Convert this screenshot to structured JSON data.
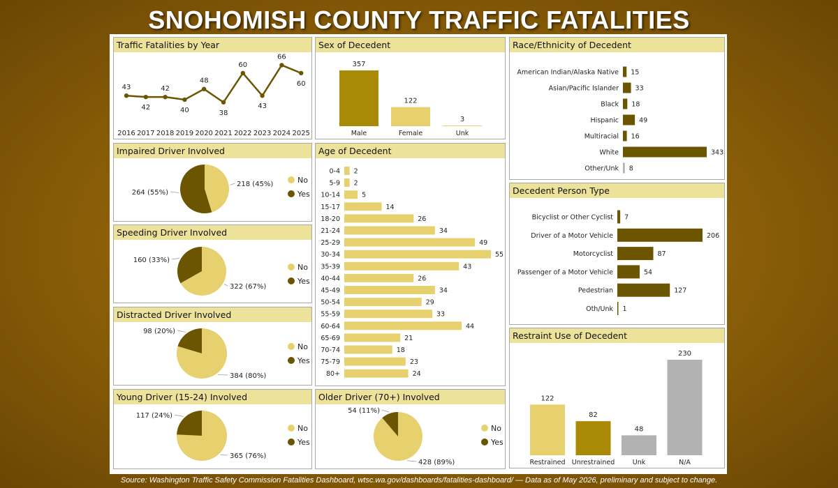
{
  "title": "SNOHOMISH COUNTY TRAFFIC FATALITIES",
  "source": "Source: Washington Traffic Safety Commission Fatalities Dashboard, wtsc.wa.gov/dashboards/fatalities-dashboard/ — Data as of May 2026, preliminary and subject to change.",
  "colors": {
    "light": "#e6d16e",
    "mid": "#a88a06",
    "dark": "#6b5500",
    "gray": "#b2b2b2",
    "header": "#ede29a"
  },
  "chart_data": [
    {
      "id": "by-year",
      "type": "line",
      "title": "Traffic Fatalities by Year",
      "x": [
        "2016",
        "2017",
        "2018",
        "2019",
        "2020",
        "2021",
        "2022",
        "2023",
        "2024",
        "2025"
      ],
      "values": [
        43,
        42,
        42,
        40,
        48,
        38,
        60,
        43,
        66,
        60
      ]
    },
    {
      "id": "sex",
      "type": "bar",
      "title": "Sex of Decedent",
      "categories": [
        "Male",
        "Female",
        "Unk"
      ],
      "values": [
        357,
        122,
        3
      ]
    },
    {
      "id": "race",
      "type": "bar",
      "orientation": "horizontal",
      "title": "Race/Ethnicity of Decedent",
      "categories": [
        "American Indian/Alaska Native",
        "Asian/Pacific Islander",
        "Black",
        "Hispanic",
        "Multiracial",
        "White",
        "Other/Unk"
      ],
      "values": [
        15,
        33,
        18,
        49,
        16,
        343,
        8
      ]
    },
    {
      "id": "impaired",
      "type": "pie",
      "title": "Impaired Driver Involved",
      "slices": [
        {
          "label": "No",
          "value": 218,
          "text": "218 (45%)"
        },
        {
          "label": "Yes",
          "value": 264,
          "text": "264 (55%)"
        }
      ]
    },
    {
      "id": "age",
      "type": "bar",
      "orientation": "horizontal",
      "title": "Age of Decedent",
      "categories": [
        "0-4",
        "5-9",
        "10-14",
        "15-17",
        "18-20",
        "21-24",
        "25-29",
        "30-34",
        "35-39",
        "40-44",
        "45-49",
        "50-54",
        "55-59",
        "60-64",
        "65-69",
        "70-74",
        "75-79",
        "80+"
      ],
      "values": [
        2,
        2,
        5,
        14,
        26,
        34,
        49,
        55,
        43,
        26,
        34,
        29,
        33,
        44,
        21,
        18,
        23,
        24
      ]
    },
    {
      "id": "person-type",
      "type": "bar",
      "orientation": "horizontal",
      "title": "Decedent Person Type",
      "categories": [
        "Bicyclist or Other Cyclist",
        "Driver of a Motor Vehicle",
        "Motorcyclist",
        "Passenger of a Motor Vehicle",
        "Pedestrian",
        "Oth/Unk"
      ],
      "values": [
        7,
        206,
        87,
        54,
        127,
        1
      ]
    },
    {
      "id": "speeding",
      "type": "pie",
      "title": "Speeding Driver Involved",
      "slices": [
        {
          "label": "No",
          "value": 322,
          "text": "322 (67%)"
        },
        {
          "label": "Yes",
          "value": 160,
          "text": "160 (33%)"
        }
      ]
    },
    {
      "id": "distracted",
      "type": "pie",
      "title": "Distracted Driver Involved",
      "slices": [
        {
          "label": "No",
          "value": 384,
          "text": "384 (80%)"
        },
        {
          "label": "Yes",
          "value": 98,
          "text": "98 (20%)"
        }
      ]
    },
    {
      "id": "restraint",
      "type": "bar",
      "title": "Restraint Use of Decedent",
      "categories": [
        "Restrained",
        "Unrestrained",
        "Unk",
        "N/A"
      ],
      "values": [
        122,
        82,
        48,
        230
      ]
    },
    {
      "id": "young",
      "type": "pie",
      "title": "Young Driver (15-24) Involved",
      "slices": [
        {
          "label": "No",
          "value": 365,
          "text": "365 (76%)"
        },
        {
          "label": "Yes",
          "value": 117,
          "text": "117 (24%)"
        }
      ]
    },
    {
      "id": "older",
      "type": "pie",
      "title": "Older Driver (70+) Involved",
      "slices": [
        {
          "label": "No",
          "value": 428,
          "text": "428 (89%)"
        },
        {
          "label": "Yes",
          "value": 54,
          "text": "54 (11%)"
        }
      ]
    }
  ]
}
